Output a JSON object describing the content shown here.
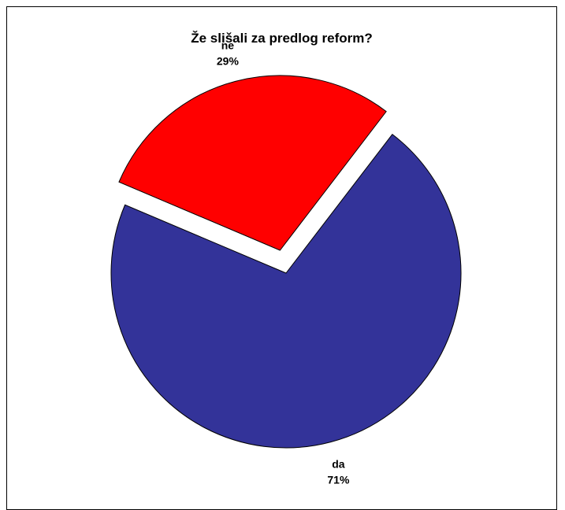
{
  "chart_data": {
    "type": "pie",
    "title": "Že slišali za predlog reform?",
    "categories": [
      "ne",
      "da"
    ],
    "values": [
      29,
      71
    ],
    "value_labels": [
      "29%",
      "71%"
    ],
    "colors": [
      "#ff0000",
      "#333399"
    ],
    "exploded": [
      "ne"
    ],
    "legend": "none"
  }
}
